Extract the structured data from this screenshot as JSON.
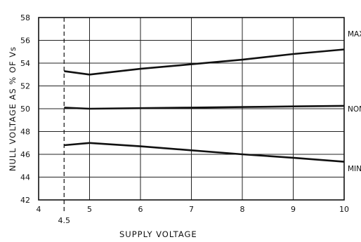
{
  "chart_data": {
    "type": "line",
    "title": "",
    "xlabel": "SUPPLY VOLTAGE",
    "ylabel": "NULL VOLTAGE AS % OF Vs",
    "xlim": [
      4,
      10
    ],
    "ylim": [
      42,
      58
    ],
    "x_ticks": [
      "4",
      "5",
      "6",
      "7",
      "8",
      "9",
      "10"
    ],
    "x_extra_tick": "4.5",
    "y_ticks": [
      "42",
      "44",
      "46",
      "48",
      "50",
      "52",
      "54",
      "56",
      "58"
    ],
    "grid": true,
    "reference_line": {
      "x": 4.5,
      "style": "dashed"
    },
    "series": [
      {
        "name": "MAX",
        "x": [
          4.5,
          5,
          6,
          7,
          8,
          9,
          10
        ],
        "y": [
          53.3,
          53.0,
          53.5,
          53.9,
          54.3,
          54.8,
          55.2
        ]
      },
      {
        "name": "NOM",
        "x": [
          4.5,
          5,
          6,
          7,
          8,
          9,
          10
        ],
        "y": [
          50.1,
          50.0,
          50.05,
          50.1,
          50.15,
          50.2,
          50.25
        ]
      },
      {
        "name": "MIN",
        "x": [
          4.5,
          5,
          6,
          7,
          8,
          9,
          10
        ],
        "y": [
          46.8,
          47.0,
          46.7,
          46.35,
          46.0,
          45.7,
          45.35
        ]
      }
    ]
  }
}
